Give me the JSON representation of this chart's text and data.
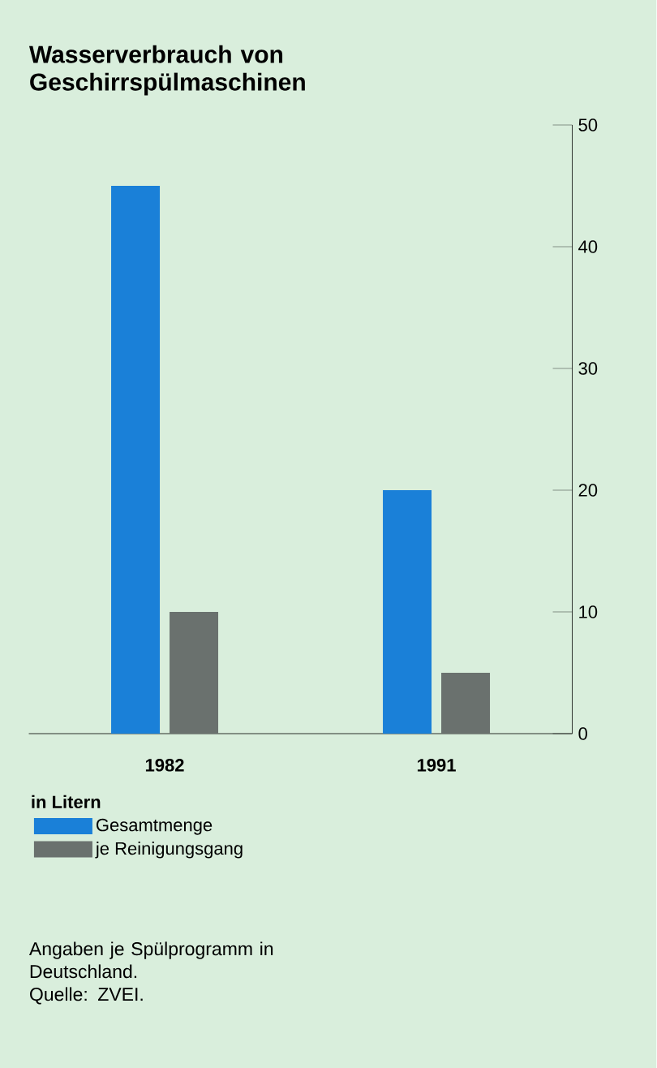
{
  "chart_data": {
    "type": "bar",
    "title": "Wasserverbrauch von Geschirrspülmaschinen",
    "categories": [
      "1982",
      "1991"
    ],
    "series": [
      {
        "name": "Gesamtmenge",
        "color": "#1a80d8",
        "values": [
          45,
          20
        ]
      },
      {
        "name": "je Reinigungsgang",
        "color": "#6a716e",
        "values": [
          10,
          5
        ]
      }
    ],
    "ylim": [
      0,
      50
    ],
    "yticks": [
      0,
      10,
      20,
      30,
      40,
      50
    ],
    "legend": "bottom",
    "legend_title": "in Litern",
    "annotations": [
      "Angaben je Spülprogramm in Deutschland.",
      "Quelle: ZVEI."
    ]
  }
}
